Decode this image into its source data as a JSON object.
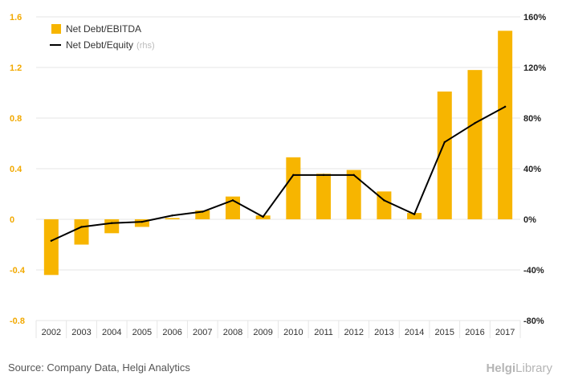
{
  "chart_data": {
    "type": "bar",
    "categories": [
      "2002",
      "2003",
      "2004",
      "2005",
      "2006",
      "2007",
      "2008",
      "2009",
      "2010",
      "2011",
      "2012",
      "2013",
      "2014",
      "2015",
      "2016",
      "2017"
    ],
    "series": [
      {
        "name": "Net Debt/EBITDA",
        "type": "bar",
        "axis": "left",
        "color": "#f7b500",
        "values": [
          -0.44,
          -0.2,
          -0.11,
          -0.06,
          0.01,
          0.07,
          0.18,
          0.03,
          0.49,
          0.36,
          0.39,
          0.22,
          0.05,
          1.01,
          1.18,
          1.49
        ]
      },
      {
        "name": "Net Debt/Equity",
        "note": "(rhs)",
        "type": "line",
        "axis": "right",
        "color": "#000000",
        "values": [
          -17,
          -6,
          -3,
          -2,
          3,
          6,
          15,
          2,
          35,
          35,
          35,
          15,
          4,
          61,
          76,
          89
        ]
      }
    ],
    "y_left": {
      "ylim": [
        -0.8,
        1.6
      ],
      "ticks": [
        "-0.8",
        "-0.4",
        "0",
        "0.4",
        "0.8",
        "1.2",
        "1.6"
      ],
      "tick_values": [
        -0.8,
        -0.4,
        0,
        0.4,
        0.8,
        1.2,
        1.6
      ]
    },
    "y_right": {
      "ylim": [
        -80,
        160
      ],
      "ticks": [
        "-80%",
        "-40%",
        "0%",
        "40%",
        "80%",
        "120%",
        "160%"
      ]
    },
    "grid": true,
    "legend": "top-left"
  },
  "footer": {
    "source": "Source: Company Data, Helgi Analytics",
    "logo_bold": "Helgi",
    "logo_light": "Library"
  }
}
